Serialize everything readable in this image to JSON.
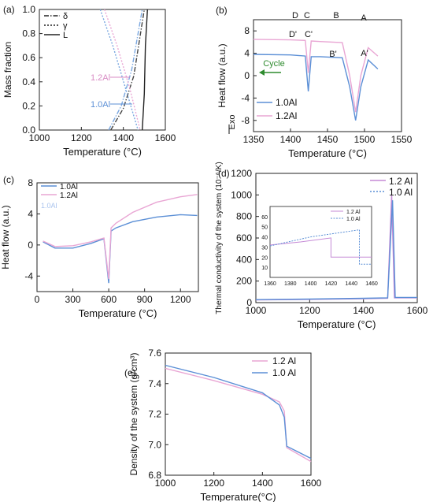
{
  "chart_data": [
    {
      "panel": "(a)",
      "type": "line",
      "xlabel": "Temperature (°C)",
      "ylabel": "Mass fraction",
      "xlim": [
        1000,
        1600
      ],
      "ylim": [
        0,
        1.0
      ],
      "xticks": [
        1000,
        1200,
        1400,
        1600
      ],
      "yticks": [
        0.0,
        0.2,
        0.4,
        0.6,
        0.8,
        1.0
      ],
      "legend": [
        "δ",
        "γ",
        "L"
      ],
      "annotations": [
        "1.2Al",
        "1.0Al"
      ],
      "series": [
        {
          "name": "δ",
          "style": "dashdot",
          "color": "#444444",
          "x": [
            1340,
            1400,
            1450,
            1500
          ],
          "y": [
            0.0,
            0.18,
            0.45,
            1.0
          ]
        },
        {
          "name": "δ",
          "style": "dashdot",
          "color": "#7aa7e0",
          "x": [
            1330,
            1390,
            1440,
            1490
          ],
          "y": [
            0.0,
            0.2,
            0.5,
            1.0
          ]
        },
        {
          "name": "γ",
          "style": "dotted",
          "color": "#7aa7e0",
          "x": [
            1290,
            1350,
            1410,
            1470
          ],
          "y": [
            1.0,
            0.7,
            0.35,
            0.0
          ]
        },
        {
          "name": "γ",
          "style": "dotted",
          "color": "#e9a6d4",
          "x": [
            1310,
            1370,
            1430,
            1480
          ],
          "y": [
            1.0,
            0.7,
            0.35,
            0.0
          ]
        },
        {
          "name": "L",
          "style": "solid",
          "color": "#222222",
          "x": [
            1490,
            1500,
            1505,
            1515
          ],
          "y": [
            0.0,
            0.3,
            0.7,
            1.0
          ]
        }
      ]
    },
    {
      "panel": "(b)",
      "type": "line",
      "xlabel": "Temperature (°C)",
      "ylabel": "Heat flow (a.u.)",
      "y_side_label": "Exo",
      "xlim": [
        1350,
        1550
      ],
      "ylim": [
        -10,
        10
      ],
      "xticks": [
        1350,
        1400,
        1450,
        1500,
        1550
      ],
      "yticks": [
        -8,
        -4,
        0,
        4,
        8
      ],
      "legend": [
        "1.0Al",
        "1.2Al"
      ],
      "arrow_label": "Cycle",
      "point_labels": [
        "D",
        "C",
        "B",
        "A",
        "D'",
        "C'",
        "B'",
        "A'"
      ],
      "series": [
        {
          "name": "1.0Al",
          "color": "#5b8fd6",
          "x": [
            1350,
            1400,
            1420,
            1424,
            1428,
            1440,
            1470,
            1480,
            1488,
            1495,
            1505,
            1518
          ],
          "y": [
            3.8,
            3.7,
            3.5,
            -2.8,
            3.4,
            3.4,
            3.2,
            -2,
            -8,
            -2,
            2.8,
            1.2
          ]
        },
        {
          "name": "1.2Al",
          "color": "#e9a6d4",
          "x": [
            1350,
            1400,
            1420,
            1424,
            1428,
            1440,
            1470,
            1480,
            1488,
            1495,
            1505,
            1518
          ],
          "y": [
            6.5,
            6.4,
            6.3,
            0.5,
            6.2,
            6.1,
            5.9,
            0,
            -6.5,
            0,
            5.0,
            3.5
          ]
        }
      ]
    },
    {
      "panel": "(c)",
      "type": "line",
      "xlabel": "Temperature (°C)",
      "ylabel": "Heat flow (a.u.)",
      "xlim": [
        0,
        1350
      ],
      "ylim": [
        -6,
        8
      ],
      "xticks": [
        0,
        300,
        600,
        900,
        1200
      ],
      "yticks": [
        -4,
        0,
        4,
        8
      ],
      "legend": [
        "1.0Al",
        "1.2Al"
      ],
      "annotations": [
        "1.0Al"
      ],
      "series": [
        {
          "name": "1.0Al",
          "color": "#5b8fd6",
          "x": [
            50,
            150,
            300,
            450,
            560,
            600,
            620,
            660,
            800,
            1000,
            1200,
            1340
          ],
          "y": [
            0.4,
            -0.4,
            -0.4,
            0.2,
            0.8,
            -4.9,
            1.8,
            2.2,
            3.0,
            3.6,
            3.9,
            3.8
          ]
        },
        {
          "name": "1.2Al",
          "color": "#e9a6d4",
          "x": [
            50,
            150,
            300,
            450,
            560,
            600,
            620,
            660,
            800,
            1000,
            1200,
            1340
          ],
          "y": [
            0.5,
            -0.2,
            -0.1,
            0.4,
            0.9,
            -4.4,
            2.2,
            2.8,
            4.2,
            5.5,
            6.2,
            6.5
          ]
        }
      ]
    },
    {
      "panel": "(d)",
      "type": "line",
      "xlabel": "Temperature (°C)",
      "ylabel": "Thermal conductivity of the system (10⁻⁶/K)",
      "xlim": [
        1000,
        1600
      ],
      "ylim": [
        0,
        1200
      ],
      "xticks": [
        1000,
        1200,
        1400,
        1600
      ],
      "yticks": [
        0,
        200,
        400,
        600,
        800,
        1000,
        1200
      ],
      "legend": [
        "1.2 Al",
        "1.0 Al"
      ],
      "series": [
        {
          "name": "1.2 Al",
          "color": "#c58ad6",
          "x": [
            1000,
            1200,
            1400,
            1490,
            1505,
            1515,
            1600
          ],
          "y": [
            25,
            30,
            36,
            40,
            1000,
            45,
            45
          ]
        },
        {
          "name": "1.0 Al",
          "color": "#5b8fd6",
          "x": [
            1000,
            1200,
            1400,
            1490,
            1508,
            1518,
            1600
          ],
          "y": [
            28,
            33,
            40,
            45,
            950,
            48,
            48
          ]
        }
      ],
      "inset": {
        "xlim": [
          1360,
          1460
        ],
        "ylim": [
          0,
          70
        ],
        "xticks": [
          1360,
          1380,
          1400,
          1420,
          1440,
          1460
        ],
        "yticks": [
          10,
          20,
          30,
          40,
          50,
          60
        ],
        "legend": [
          "1.2 Al",
          "1.0 Al"
        ],
        "series": [
          {
            "name": "1.2 Al",
            "color": "#c58ad6",
            "x": [
              1360,
              1390,
              1420,
              1420,
              1460
            ],
            "y": [
              32,
              35,
              39,
              20,
              20
            ]
          },
          {
            "name": "1.0 Al",
            "color": "#5b8fd6",
            "x": [
              1360,
              1400,
              1448,
              1448,
              1460
            ],
            "y": [
              31,
              40,
              47,
              13,
              13
            ]
          }
        ]
      }
    },
    {
      "panel": "(e)",
      "type": "line",
      "xlabel": "Temperature(°C)",
      "ylabel": "Density of the system (g/cm³)",
      "xlim": [
        1000,
        1600
      ],
      "ylim": [
        6.8,
        7.6
      ],
      "xticks": [
        1000,
        1200,
        1400,
        1600
      ],
      "yticks": [
        6.8,
        7.0,
        7.2,
        7.4,
        7.6
      ],
      "legend": [
        "1.2 Al",
        "1.0 Al"
      ],
      "series": [
        {
          "name": "1.2 Al",
          "color": "#e9a6d4",
          "x": [
            1000,
            1200,
            1400,
            1470,
            1490,
            1500,
            1600
          ],
          "y": [
            7.5,
            7.42,
            7.33,
            7.28,
            7.22,
            6.98,
            6.89
          ]
        },
        {
          "name": "1.0 Al",
          "color": "#5b8fd6",
          "x": [
            1000,
            1200,
            1400,
            1470,
            1490,
            1500,
            1600
          ],
          "y": [
            7.52,
            7.44,
            7.34,
            7.26,
            7.18,
            6.99,
            6.91
          ]
        }
      ]
    }
  ]
}
